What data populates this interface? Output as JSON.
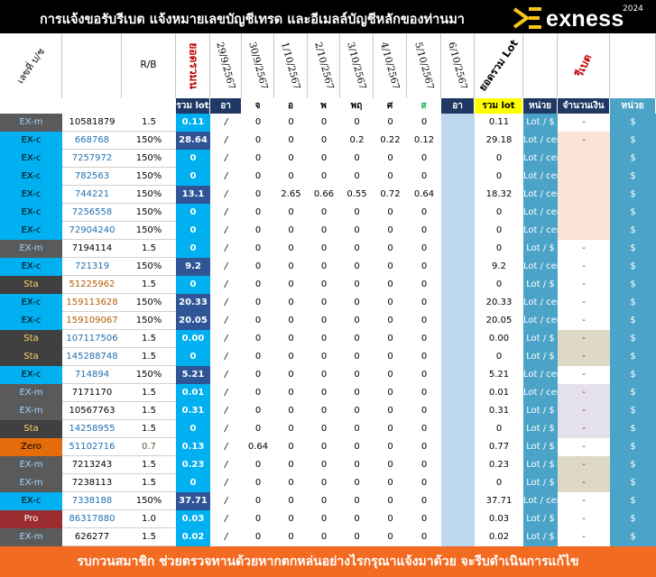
{
  "header": {
    "title": "การแจ้งขอรับรีเบต  แจ้งหมายเลขบัญชีเทรด และอีเมลล์บัญชีหลักของท่านมา",
    "brand": "exness",
    "year": "2024"
  },
  "columns": {
    "account_type": "เลขที่ บ/ช",
    "account": "",
    "rb": "R/B",
    "total_lot_col": "ยอดรวมน",
    "dates": [
      "29/9/2567",
      "30/9/2567",
      "1/10/2567",
      "2/10/2567",
      "3/10/2567",
      "4/10/2567",
      "5/10/2567",
      "6/10/2567"
    ],
    "sum_lot": "ยอดรวม Lot",
    "rebate": "รีเบต"
  },
  "subheader": {
    "total_lot": "รวม lot",
    "days": [
      "อา",
      "จ",
      "อ",
      "พ",
      "พฤ",
      "ศ",
      "ส",
      "อา"
    ],
    "sum_lot": "รวม lot",
    "unit": "หน่วย",
    "amount": "จำนวนเงิน",
    "unit2": "หน่วย"
  },
  "colors": {
    "exm": "#5a5a5a",
    "exc": "#00b0f0",
    "sta": "#404040",
    "zero": "#e46c0a",
    "pro": "#9b2d30",
    "dark_blue": "#1f3864",
    "light_blue": "#bdd7ee",
    "teal": "#4ba3c7",
    "peach": "#fbe4d5",
    "lilac": "#e4e0ec",
    "tan": "#ddd9c4"
  },
  "rows": [
    {
      "type": "EX-m",
      "acct": "10581879",
      "rb": "1.5",
      "lot": "0.11",
      "d": [
        "/",
        "0",
        "0",
        "0",
        "0",
        "0",
        "0",
        ""
      ],
      "sum": "0.11",
      "unit": "Lot / $",
      "amt": "-",
      "cur": "$"
    },
    {
      "type": "EX-c",
      "acct": "668768",
      "rb": "150%",
      "lot": "28.64",
      "d": [
        "/",
        "0",
        "0",
        "0",
        "0.2",
        "0.22",
        "0.12",
        ""
      ],
      "sum": "29.18",
      "unit": "Lot / cent",
      "amt": "-",
      "cur": "$"
    },
    {
      "type": "EX-c",
      "acct": "7257972",
      "rb": "150%",
      "lot": "0",
      "d": [
        "/",
        "0",
        "0",
        "0",
        "0",
        "0",
        "0",
        ""
      ],
      "sum": "0",
      "unit": "Lot / cent",
      "amt": "",
      "cur": "$"
    },
    {
      "type": "EX-c",
      "acct": "782563",
      "rb": "150%",
      "lot": "0",
      "d": [
        "/",
        "0",
        "0",
        "0",
        "0",
        "0",
        "0",
        ""
      ],
      "sum": "0",
      "unit": "Lot / cent",
      "amt": "",
      "cur": "$"
    },
    {
      "type": "EX-c",
      "acct": "744221",
      "rb": "150%",
      "lot": "13.1",
      "d": [
        "/",
        "0",
        "2.65",
        "0.66",
        "0.55",
        "0.72",
        "0.64",
        ""
      ],
      "sum": "18.32",
      "unit": "Lot / cent",
      "amt": "",
      "cur": "$"
    },
    {
      "type": "EX-c",
      "acct": "7256558",
      "rb": "150%",
      "lot": "0",
      "d": [
        "/",
        "0",
        "0",
        "0",
        "0",
        "0",
        "0",
        ""
      ],
      "sum": "0",
      "unit": "Lot / cent",
      "amt": "",
      "cur": "$"
    },
    {
      "type": "EX-c",
      "acct": "72904240",
      "rb": "150%",
      "lot": "0",
      "d": [
        "/",
        "0",
        "0",
        "0",
        "0",
        "0",
        "0",
        ""
      ],
      "sum": "0",
      "unit": "Lot / cent",
      "amt": "",
      "cur": "$"
    },
    {
      "type": "EX-m",
      "acct": "7194114",
      "rb": "1.5",
      "lot": "0",
      "d": [
        "/",
        "0",
        "0",
        "0",
        "0",
        "0",
        "0",
        ""
      ],
      "sum": "0",
      "unit": "Lot / $",
      "amt": "-",
      "cur": "$"
    },
    {
      "type": "EX-c",
      "acct": "721319",
      "rb": "150%",
      "lot": "9.2",
      "d": [
        "/",
        "0",
        "0",
        "0",
        "0",
        "0",
        "0",
        ""
      ],
      "sum": "9.2",
      "unit": "Lot / cent",
      "amt": "-",
      "cur": "$"
    },
    {
      "type": "Sta",
      "acct": "51225962",
      "rb": "1.5",
      "lot": "0",
      "d": [
        "/",
        "0",
        "0",
        "0",
        "0",
        "0",
        "0",
        ""
      ],
      "sum": "0",
      "unit": "Lot / $",
      "amt": "-",
      "cur": "$"
    },
    {
      "type": "EX-c",
      "acct": "159113628",
      "rb": "150%",
      "lot": "20.33",
      "d": [
        "/",
        "0",
        "0",
        "0",
        "0",
        "0",
        "0",
        ""
      ],
      "sum": "20.33",
      "unit": "Lot / cent",
      "amt": "-",
      "cur": "$"
    },
    {
      "type": "EX-c",
      "acct": "159109067",
      "rb": "150%",
      "lot": "20.05",
      "d": [
        "/",
        "0",
        "0",
        "0",
        "0",
        "0",
        "0",
        ""
      ],
      "sum": "20.05",
      "unit": "Lot / cent",
      "amt": "-",
      "cur": "$"
    },
    {
      "type": "Sta",
      "acct": "107117506",
      "rb": "1.5",
      "lot": "0.00",
      "d": [
        "/",
        "0",
        "0",
        "0",
        "0",
        "0",
        "0",
        ""
      ],
      "sum": "0.00",
      "unit": "Lot / $",
      "amt": "-",
      "cur": "$"
    },
    {
      "type": "Sta",
      "acct": "145288748",
      "rb": "1.5",
      "lot": "0",
      "d": [
        "/",
        "0",
        "0",
        "0",
        "0",
        "0",
        "0",
        ""
      ],
      "sum": "0",
      "unit": "Lot / $",
      "amt": "-",
      "cur": "$"
    },
    {
      "type": "EX-c",
      "acct": "714894",
      "rb": "150%",
      "lot": "5.21",
      "d": [
        "/",
        "0",
        "0",
        "0",
        "0",
        "0",
        "0",
        ""
      ],
      "sum": "5.21",
      "unit": "Lot / cent",
      "amt": "-",
      "cur": "$"
    },
    {
      "type": "EX-m",
      "acct": "7171170",
      "rb": "1.5",
      "lot": "0.01",
      "d": [
        "/",
        "0",
        "0",
        "0",
        "0",
        "0",
        "0",
        ""
      ],
      "sum": "0.01",
      "unit": "Lot / cent",
      "amt": "-",
      "cur": "$"
    },
    {
      "type": "EX-m",
      "acct": "10567763",
      "rb": "1.5",
      "lot": "0.31",
      "d": [
        "/",
        "0",
        "0",
        "0",
        "0",
        "0",
        "0",
        ""
      ],
      "sum": "0.31",
      "unit": "Lot / $",
      "amt": "-",
      "cur": "$"
    },
    {
      "type": "Sta",
      "acct": "14258955",
      "rb": "1.5",
      "lot": "0",
      "d": [
        "/",
        "0",
        "0",
        "0",
        "0",
        "0",
        "0",
        ""
      ],
      "sum": "0",
      "unit": "Lot / $",
      "amt": "-",
      "cur": "$"
    },
    {
      "type": "Zero",
      "acct": "51102716",
      "rb": "0.7",
      "lot": "0.13",
      "d": [
        "/",
        "0.64",
        "0",
        "0",
        "0",
        "0",
        "0",
        ""
      ],
      "sum": "0.77",
      "unit": "Lot / $",
      "amt": "-",
      "cur": "$"
    },
    {
      "type": "EX-m",
      "acct": "7213243",
      "rb": "1.5",
      "lot": "0.23",
      "d": [
        "/",
        "0",
        "0",
        "0",
        "0",
        "0",
        "0",
        ""
      ],
      "sum": "0.23",
      "unit": "Lot / $",
      "amt": "-",
      "cur": "$"
    },
    {
      "type": "EX-m",
      "acct": "7238113",
      "rb": "1.5",
      "lot": "0",
      "d": [
        "/",
        "0",
        "0",
        "0",
        "0",
        "0",
        "0",
        ""
      ],
      "sum": "0",
      "unit": "Lot / $",
      "amt": "-",
      "cur": "$"
    },
    {
      "type": "EX-c",
      "acct": "7338188",
      "rb": "150%",
      "lot": "37.71",
      "d": [
        "/",
        "0",
        "0",
        "0",
        "0",
        "0",
        "0",
        ""
      ],
      "sum": "37.71",
      "unit": "Lot / cent",
      "amt": "-",
      "cur": "$"
    },
    {
      "type": "Pro",
      "acct": "86317880",
      "rb": "1.0",
      "lot": "0.03",
      "d": [
        "/",
        "0",
        "0",
        "0",
        "0",
        "0",
        "0",
        ""
      ],
      "sum": "0.03",
      "unit": "Lot / $",
      "amt": "-",
      "cur": "$"
    },
    {
      "type": "EX-m",
      "acct": "626277",
      "rb": "1.5",
      "lot": "0.02",
      "d": [
        "/",
        "0",
        "0",
        "0",
        "0",
        "0",
        "0",
        ""
      ],
      "sum": "0.02",
      "unit": "Lot / $",
      "amt": "-",
      "cur": "$"
    }
  ],
  "footer": "รบกวนสมาชิก ช่วยตรวจทานด้วยหากตกหล่นอย่างไรกรุณาแจ้งมาด้วย จะรีบดำเนินการแก้ไข"
}
